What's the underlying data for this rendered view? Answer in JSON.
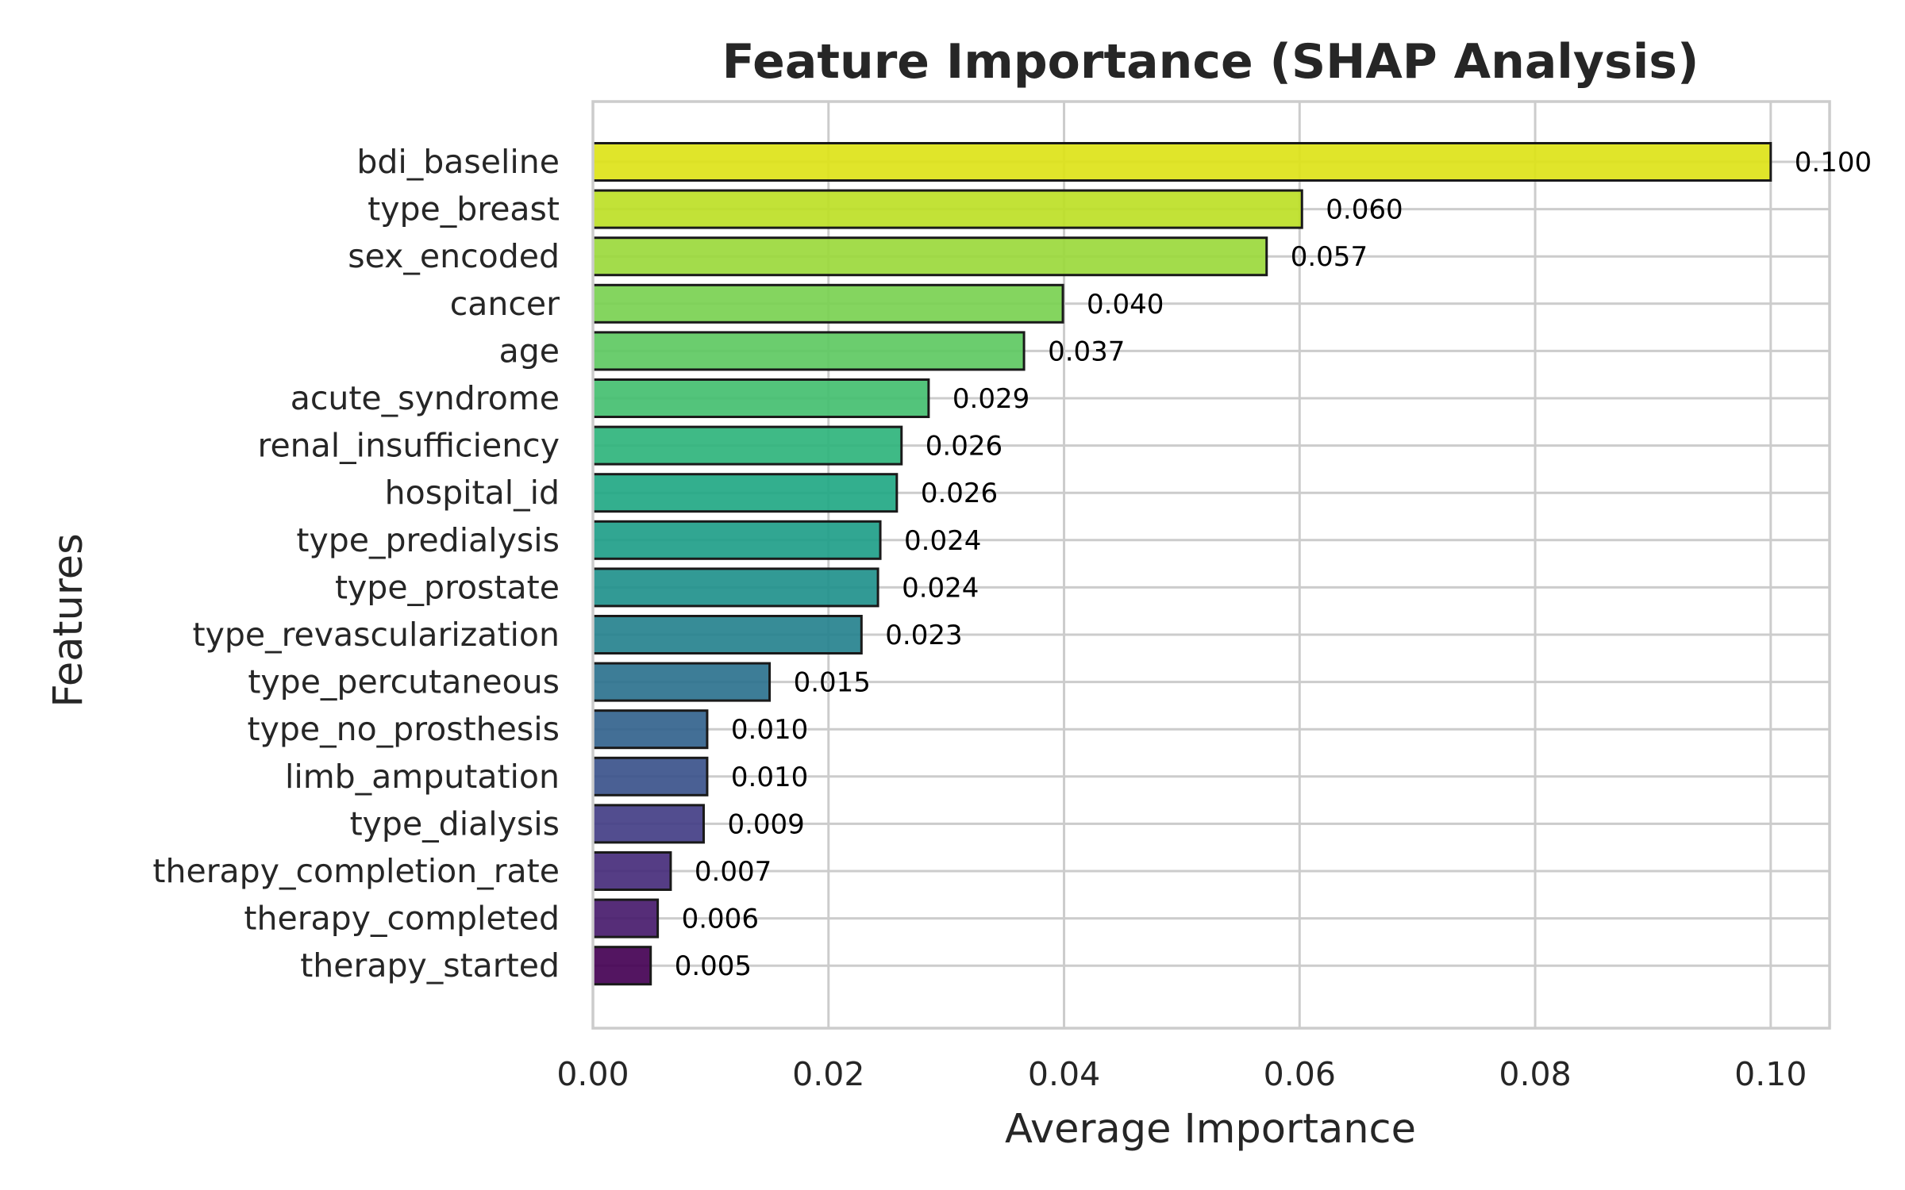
{
  "chart_data": {
    "type": "bar",
    "orientation": "horizontal",
    "title": "Feature Importance (SHAP Analysis)",
    "xlabel": "Average Importance",
    "ylabel": "Features",
    "xlim": [
      0,
      0.105
    ],
    "xticks": [
      0.0,
      0.02,
      0.04,
      0.06,
      0.08,
      0.1
    ],
    "xtick_labels": [
      "0.00",
      "0.02",
      "0.04",
      "0.06",
      "0.08",
      "0.10"
    ],
    "grid": true,
    "legend": "none",
    "colormap": "viridis",
    "categories": [
      "bdi_baseline",
      "type_breast",
      "sex_encoded",
      "cancer",
      "age",
      "acute_syndrome",
      "renal_insufficiency",
      "hospital_id",
      "type_predialysis",
      "type_prostate",
      "type_revascularization",
      "type_percutaneous",
      "type_no_prosthesis",
      "limb_amputation",
      "type_dialysis",
      "therapy_completion_rate",
      "therapy_completed",
      "therapy_started"
    ],
    "values": [
      0.1,
      0.0602,
      0.0572,
      0.0399,
      0.0366,
      0.0285,
      0.0262,
      0.0258,
      0.0244,
      0.0242,
      0.0228,
      0.015,
      0.0097,
      0.0097,
      0.0094,
      0.0066,
      0.0055,
      0.0049
    ],
    "value_labels": [
      "0.100",
      "0.060",
      "0.057",
      "0.040",
      "0.037",
      "0.029",
      "0.026",
      "0.026",
      "0.024",
      "0.024",
      "0.023",
      "0.015",
      "0.010",
      "0.010",
      "0.009",
      "0.007",
      "0.006",
      "0.005"
    ],
    "colors": [
      "#dde318",
      "#bddf26",
      "#9bd93c",
      "#7ad151",
      "#5ec962",
      "#44bf70",
      "#2fb47c",
      "#22a884",
      "#1f9e89",
      "#21918c",
      "#26828e",
      "#2c728e",
      "#33638d",
      "#3b528b",
      "#433e85",
      "#472d7b",
      "#481b6d",
      "#440154"
    ]
  }
}
